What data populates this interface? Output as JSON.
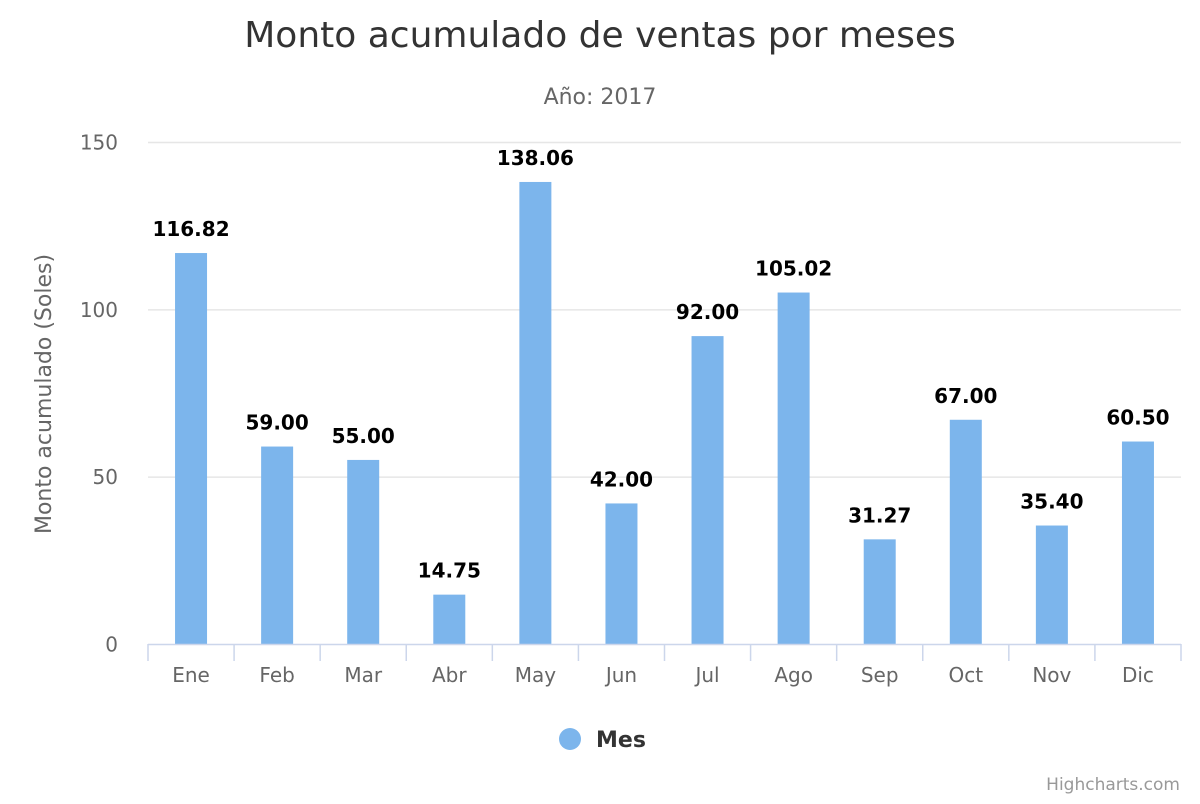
{
  "chart_data": {
    "type": "bar",
    "title": "Monto acumulado de ventas por meses",
    "subtitle": "Año: 2017",
    "xlabel": "",
    "ylabel": "Monto acumulado (Soles)",
    "categories": [
      "Ene",
      "Feb",
      "Mar",
      "Abr",
      "May",
      "Jun",
      "Jul",
      "Ago",
      "Sep",
      "Oct",
      "Nov",
      "Dic"
    ],
    "series": [
      {
        "name": "Mes",
        "values": [
          116.82,
          59.0,
          55.0,
          14.75,
          138.06,
          42.0,
          92.0,
          105.02,
          31.27,
          67.0,
          35.4,
          60.5
        ],
        "labels": [
          "116.82",
          "59.00",
          "55.00",
          "14.75",
          "138.06",
          "42.00",
          "92.00",
          "105.02",
          "31.27",
          "67.00",
          "35.40",
          "60.50"
        ]
      }
    ],
    "ylim": [
      0,
      150
    ],
    "yticks": [
      0,
      50,
      100,
      150
    ],
    "ytick_labels": [
      "0",
      "50",
      "100",
      "150"
    ],
    "grid": true,
    "legend_position": "bottom-center",
    "colors": {
      "bar": "#7cb5ec",
      "grid": "#e6e6e6",
      "axis": "#ccd6eb"
    },
    "credits": "Highcharts.com"
  }
}
